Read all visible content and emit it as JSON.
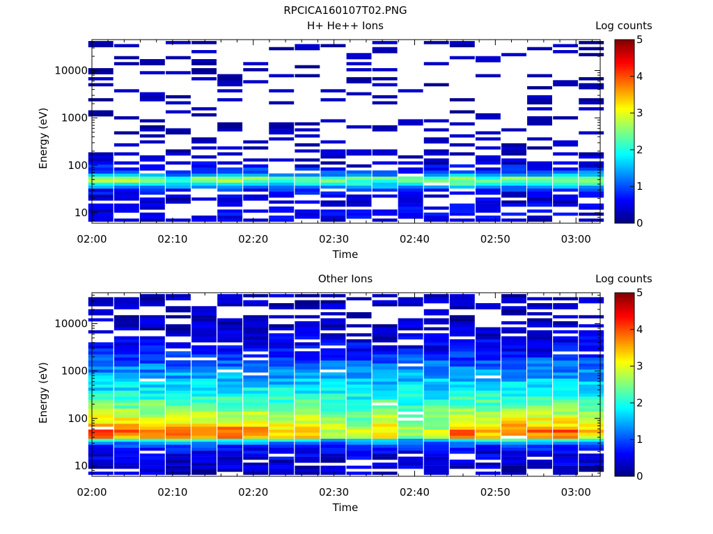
{
  "page": {
    "title": "RPCICA160107T02.PNG"
  },
  "colorbar": {
    "title": "Log counts",
    "ticks": [
      "0",
      "1",
      "2",
      "3",
      "4",
      "5"
    ],
    "range": [
      0,
      5
    ],
    "colormap": "jet"
  },
  "chart_data": [
    {
      "type": "heatmap",
      "title": "H+ He++ Ions",
      "xlabel": "Time",
      "ylabel": "Energy (eV)",
      "x_ticks": [
        "02:00",
        "02:10",
        "02:20",
        "02:30",
        "02:40",
        "02:50",
        "03:00"
      ],
      "y_ticks": [
        "10",
        "100",
        "1000",
        "10000"
      ],
      "y_scale": "log",
      "y_range": [
        6,
        45000
      ],
      "x_range_minutes": [
        0,
        63
      ],
      "time_bins_minutes": [
        1.1,
        4.3,
        7.5,
        10.7,
        13.9,
        17.1,
        20.3,
        23.5,
        26.7,
        29.9,
        33.1,
        36.3,
        39.5,
        42.7,
        45.9,
        49.1,
        52.3,
        55.5,
        58.7,
        61.9
      ],
      "profiles": {
        "base": [
          [
            7,
            0.4
          ],
          [
            9,
            0.5
          ],
          [
            16,
            0.4
          ],
          [
            22,
            0.4
          ],
          [
            30,
            0.7
          ],
          [
            42,
            2.0
          ],
          [
            52,
            2.5
          ],
          [
            62,
            1.2
          ],
          [
            80,
            0.7
          ],
          [
            120,
            0.3
          ],
          [
            200,
            0.15
          ],
          [
            500,
            0.05
          ],
          [
            40000,
            0.05
          ]
        ],
        "strong": [
          [
            7,
            0.4
          ],
          [
            9,
            0.5
          ],
          [
            16,
            0.4
          ],
          [
            22,
            0.4
          ],
          [
            30,
            0.7
          ],
          [
            42,
            2.2
          ],
          [
            52,
            2.9
          ],
          [
            62,
            1.5
          ],
          [
            80,
            0.9
          ],
          [
            120,
            0.35
          ],
          [
            200,
            0.15
          ],
          [
            500,
            0.05
          ],
          [
            40000,
            0.05
          ]
        ]
      },
      "time_profile": [
        "strong",
        "strong",
        "strong",
        "base",
        "strong",
        "strong",
        "strong",
        "base",
        "base",
        "base",
        "base",
        "base",
        "base",
        "base",
        "strong",
        "base",
        "strong",
        "strong",
        "strong",
        "strong"
      ],
      "sparsity": 0.42
    },
    {
      "type": "heatmap",
      "title": "Other Ions",
      "xlabel": "Time",
      "ylabel": "Energy (eV)",
      "x_ticks": [
        "02:00",
        "02:10",
        "02:20",
        "02:30",
        "02:40",
        "02:50",
        "03:00"
      ],
      "y_ticks": [
        "10",
        "100",
        "1000",
        "10000"
      ],
      "y_scale": "log",
      "y_range": [
        6,
        45000
      ],
      "x_range_minutes": [
        0,
        63
      ],
      "time_bins_minutes": [
        1.1,
        4.3,
        7.5,
        10.7,
        13.9,
        17.1,
        20.3,
        23.5,
        26.7,
        29.9,
        33.1,
        36.3,
        39.5,
        42.7,
        45.9,
        49.1,
        52.3,
        55.5,
        58.7,
        61.9
      ],
      "profiles": {
        "base": [
          [
            7,
            0.3
          ],
          [
            12,
            0.4
          ],
          [
            20,
            0.5
          ],
          [
            28,
            1.0
          ],
          [
            34,
            1.6
          ],
          [
            40,
            3.2
          ],
          [
            55,
            3.3
          ],
          [
            80,
            3.0
          ],
          [
            150,
            2.5
          ],
          [
            300,
            2.0
          ],
          [
            700,
            1.5
          ],
          [
            1500,
            1.1
          ],
          [
            3000,
            0.6
          ],
          [
            7000,
            0.3
          ],
          [
            20000,
            0.2
          ]
        ],
        "strong": [
          [
            7,
            0.3
          ],
          [
            12,
            0.4
          ],
          [
            20,
            0.5
          ],
          [
            28,
            1.0
          ],
          [
            34,
            1.8
          ],
          [
            40,
            3.6
          ],
          [
            55,
            3.9
          ],
          [
            80,
            3.2
          ],
          [
            150,
            2.6
          ],
          [
            300,
            2.0
          ],
          [
            700,
            1.5
          ],
          [
            1500,
            1.1
          ],
          [
            3000,
            0.6
          ],
          [
            7000,
            0.3
          ],
          [
            20000,
            0.2
          ]
        ],
        "weak": [
          [
            7,
            0.3
          ],
          [
            12,
            0.4
          ],
          [
            20,
            0.5
          ],
          [
            28,
            1.0
          ],
          [
            34,
            1.4
          ],
          [
            40,
            2.6
          ],
          [
            55,
            2.8
          ],
          [
            80,
            2.6
          ],
          [
            150,
            2.3
          ],
          [
            300,
            1.9
          ],
          [
            700,
            1.5
          ],
          [
            1500,
            1.1
          ],
          [
            3000,
            0.6
          ],
          [
            7000,
            0.3
          ],
          [
            20000,
            0.2
          ]
        ]
      },
      "time_profile": [
        "strong",
        "strong",
        "strong",
        "strong",
        "strong",
        "strong",
        "strong",
        "base",
        "base",
        "weak",
        "weak",
        "base",
        "weak",
        "weak",
        "strong",
        "base",
        "strong",
        "strong",
        "strong",
        "base"
      ],
      "sparsity": 0.12
    }
  ]
}
